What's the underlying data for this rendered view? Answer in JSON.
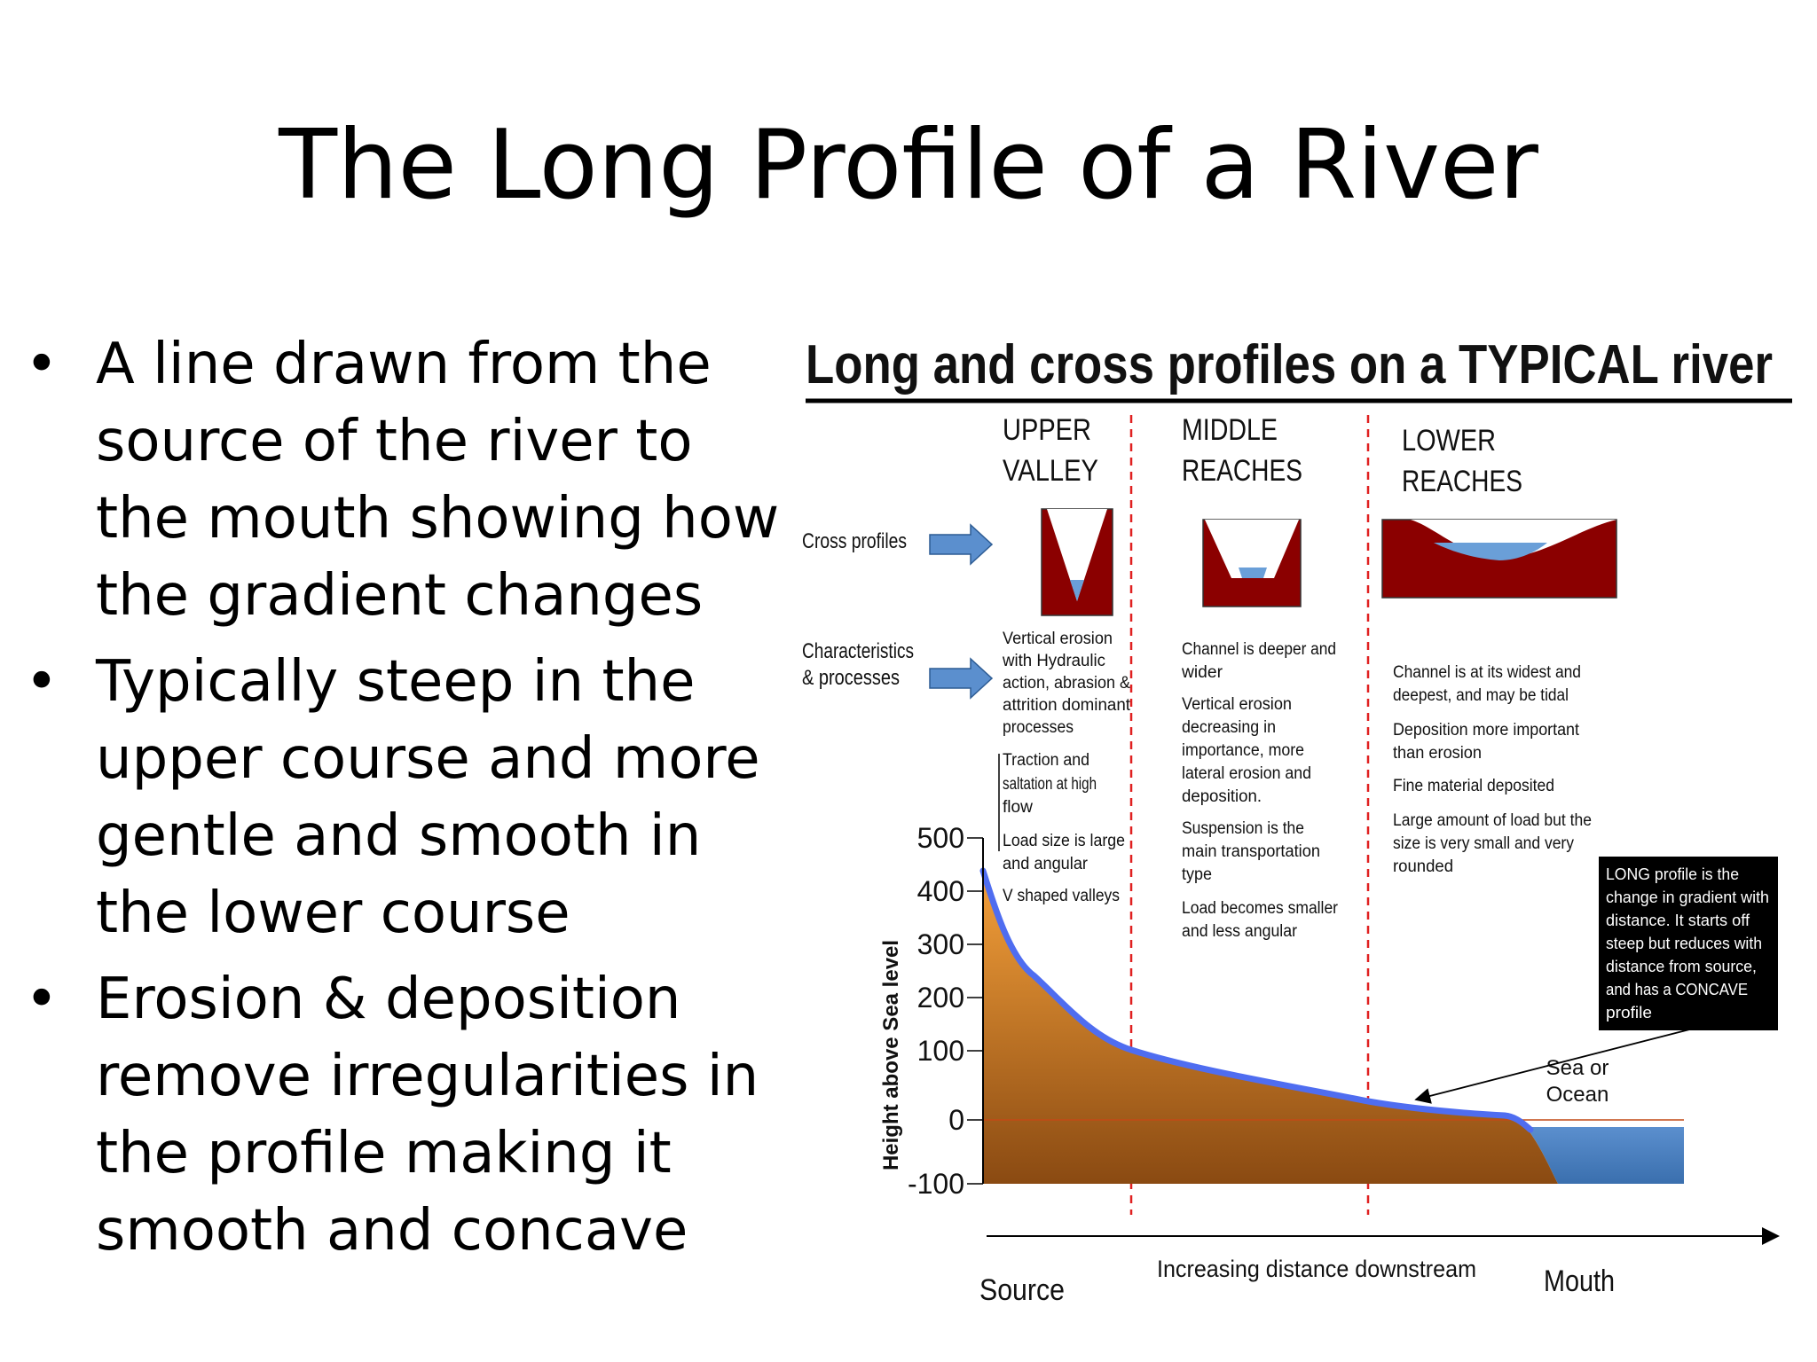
{
  "slide": {
    "title": "The Long Profile of a River",
    "bullets": [
      "A line drawn from the source of the river to the mouth showing how the gradient changes",
      "Typically steep in the upper course and more gentle and smooth in the lower course",
      "Erosion & deposition remove irregularities in the profile making it smooth and concave"
    ]
  },
  "diagram": {
    "title": "Long and cross profiles on a TYPICAL river",
    "zones": [
      {
        "line1": "UPPER",
        "line2": "VALLEY"
      },
      {
        "line1": "MIDDLE",
        "line2": "REACHES"
      },
      {
        "line1": "LOWER",
        "line2": "REACHES"
      }
    ],
    "row_labels": {
      "cross_profiles": "Cross profiles",
      "characteristics_1": "Characteristics",
      "characteristics_2": "& processes"
    },
    "upper_notes": [
      "Vertical erosion",
      "with Hydraulic",
      "action, abrasion &",
      "attrition dominant",
      "processes",
      "Traction and",
      "saltation at high",
      "flow",
      "Load size is large",
      "and angular",
      "V shaped valleys"
    ],
    "middle_notes": [
      "Channel is deeper and",
      "wider",
      "Vertical erosion",
      "decreasing in",
      "importance, more",
      "lateral erosion and",
      "deposition.",
      "Suspension is the",
      "main transportation",
      "type",
      "Load becomes smaller",
      "and less angular"
    ],
    "lower_notes": [
      "Channel is at its widest and",
      "deepest, and may be tidal",
      "Deposition more important",
      "than erosion",
      "Fine material deposited",
      "Large amount of load but the",
      "size is very small and very",
      "rounded"
    ],
    "callout": [
      "LONG profile is the",
      "change in gradient with",
      "distance.  It starts off",
      "steep but reduces with",
      "distance from source,",
      "and has a CONCAVE",
      "profile"
    ],
    "y_axis": {
      "label": "Height above Sea level",
      "ticks": [
        "500",
        "400",
        "300",
        "200",
        "100",
        "0",
        "-100"
      ]
    },
    "x_axis": {
      "label": "Increasing distance downstream",
      "source": "Source",
      "mouth": "Mouth"
    },
    "sea": {
      "line1": "Sea or",
      "line2": "Ocean"
    },
    "colors": {
      "valley_fill": "#8b0000",
      "water": "#6a9fd8",
      "profile_line": "#4f6df0",
      "land_top": "#f4a03a",
      "land_bottom": "#8a4a12",
      "zone_divider": "#e02020",
      "callout_bg": "#000000"
    }
  }
}
